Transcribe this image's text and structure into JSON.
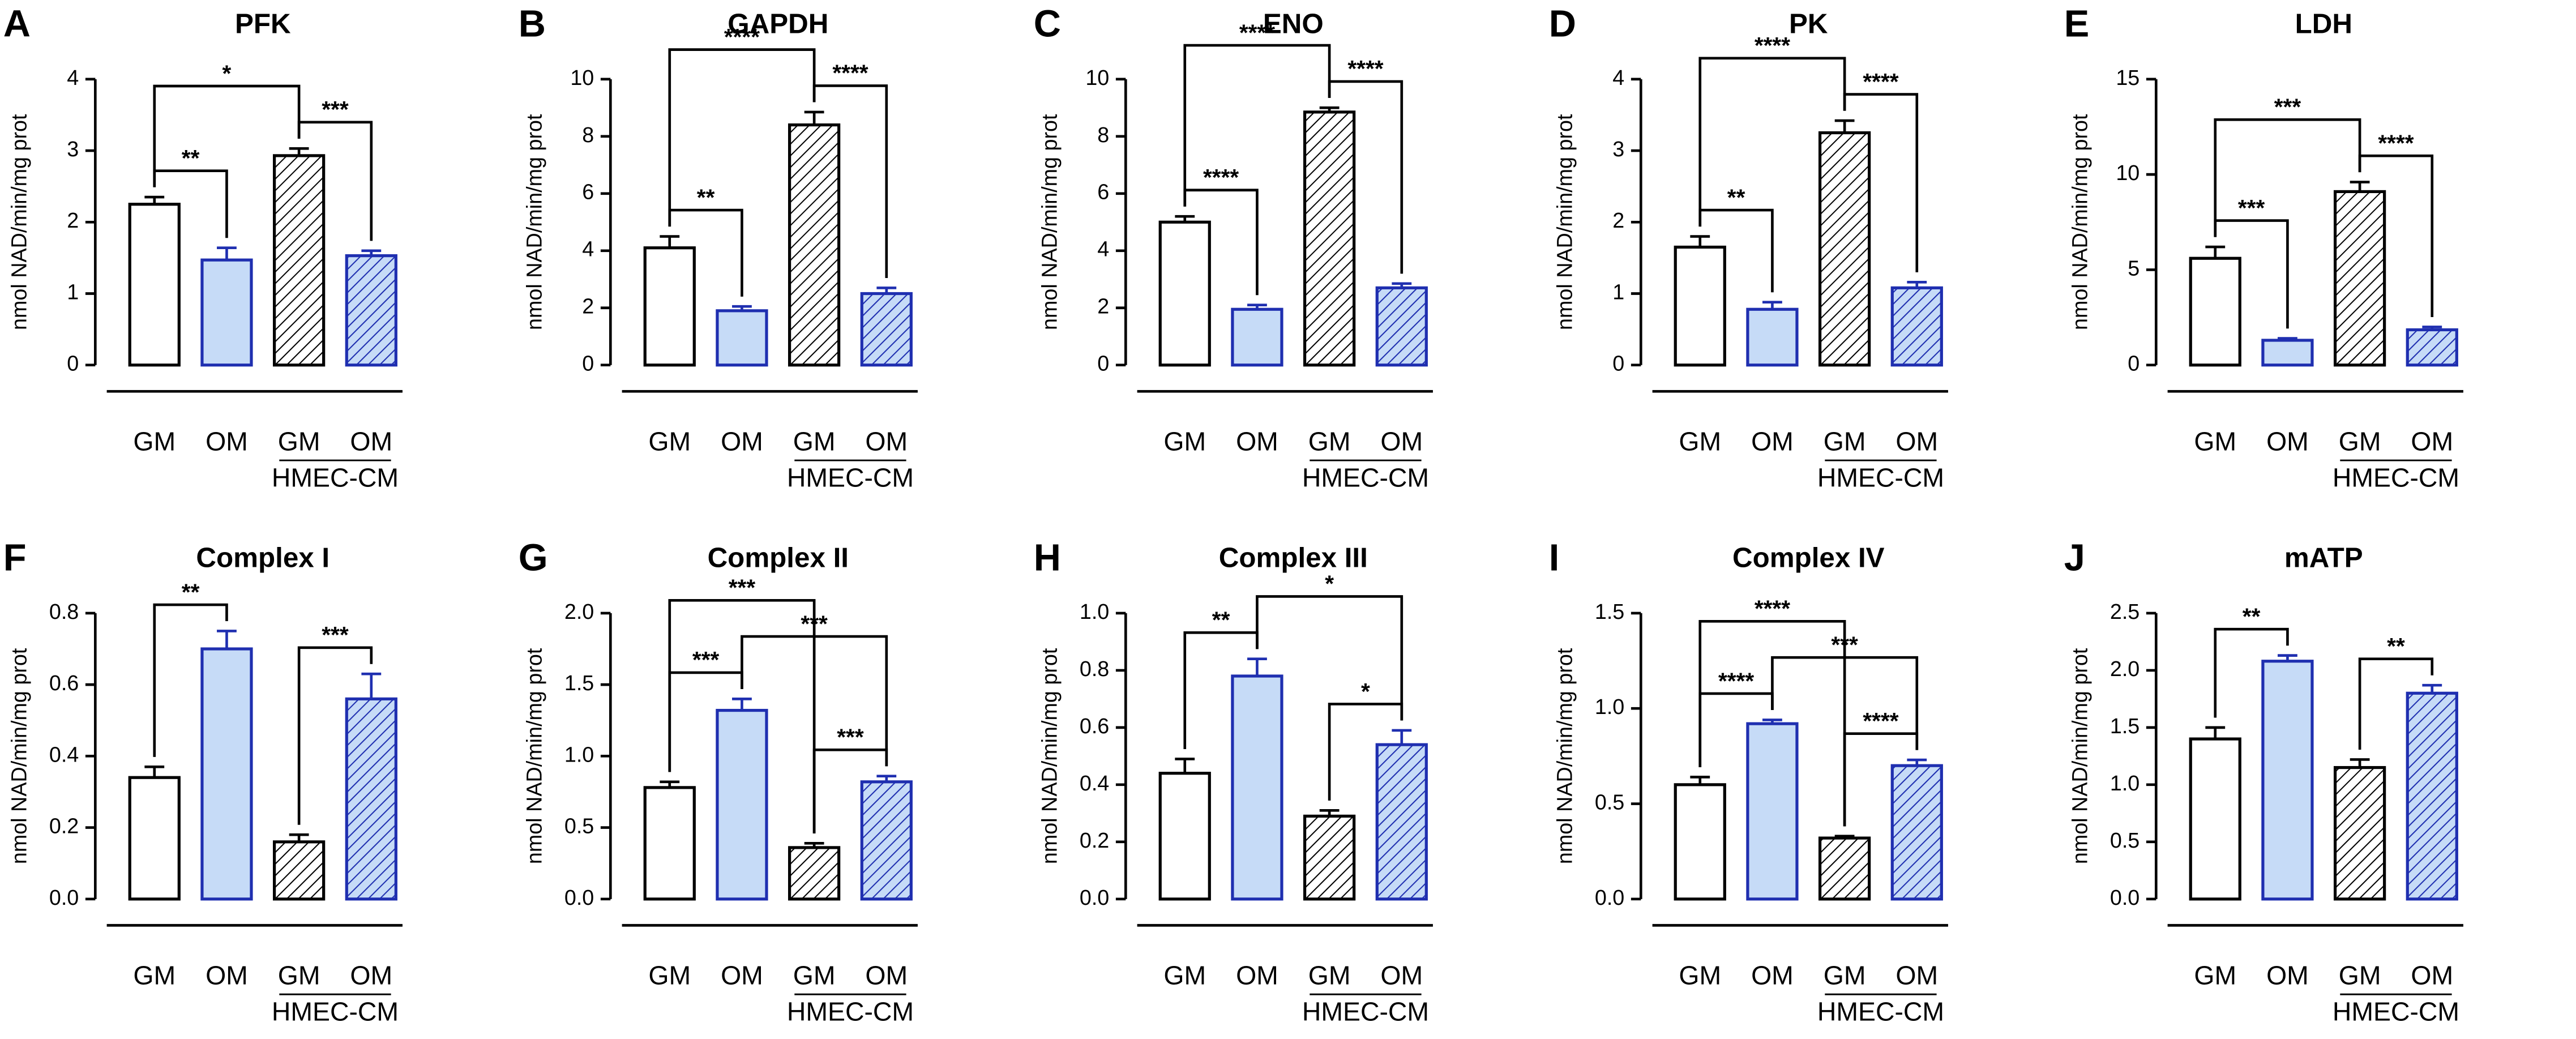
{
  "chart_data": [
    {
      "type": "bar",
      "panel": "A",
      "title": "PFK",
      "ylabel": "nmol NAD/min/mg prot",
      "categories": [
        "GM",
        "OM",
        "GM",
        "OM"
      ],
      "group_label": "HMEC-CM",
      "values": [
        2.25,
        1.47,
        2.93,
        1.53
      ],
      "errors": [
        0.1,
        0.17,
        0.1,
        0.07
      ],
      "ylim": [
        0,
        4
      ],
      "yticks": [
        0,
        1,
        2,
        3,
        4
      ],
      "colors": [
        "#ffffff",
        "#c6dbf7",
        "#ffffff",
        "#c6dbf7"
      ],
      "edgecolors": [
        "#000000",
        "#1f2fb0",
        "#000000",
        "#1f2fb0"
      ],
      "hatch": [
        false,
        false,
        true,
        true
      ],
      "brackets": [
        {
          "from": 0,
          "to": 1,
          "label": "**"
        },
        {
          "from": 2,
          "to": 3,
          "label": "***"
        },
        {
          "from": 0,
          "to": 2,
          "label": "*"
        }
      ]
    },
    {
      "type": "bar",
      "panel": "B",
      "title": "GAPDH",
      "ylabel": "nmol NAD/min/mg prot",
      "categories": [
        "GM",
        "OM",
        "GM",
        "OM"
      ],
      "group_label": "HMEC-CM",
      "values": [
        4.1,
        1.9,
        8.4,
        2.5
      ],
      "errors": [
        0.4,
        0.15,
        0.45,
        0.2
      ],
      "ylim": [
        0,
        10
      ],
      "yticks": [
        0,
        2,
        4,
        6,
        8,
        10
      ],
      "colors": [
        "#ffffff",
        "#c6dbf7",
        "#ffffff",
        "#c6dbf7"
      ],
      "edgecolors": [
        "#000000",
        "#1f2fb0",
        "#000000",
        "#1f2fb0"
      ],
      "hatch": [
        false,
        false,
        true,
        true
      ],
      "brackets": [
        {
          "from": 0,
          "to": 1,
          "label": "**"
        },
        {
          "from": 2,
          "to": 3,
          "label": "****"
        },
        {
          "from": 0,
          "to": 2,
          "label": "****"
        }
      ]
    },
    {
      "type": "bar",
      "panel": "C",
      "title": "ENO",
      "ylabel": "nmol NAD/min/mg prot",
      "categories": [
        "GM",
        "OM",
        "GM",
        "OM"
      ],
      "group_label": "HMEC-CM",
      "values": [
        5.0,
        1.95,
        8.85,
        2.7
      ],
      "errors": [
        0.2,
        0.15,
        0.15,
        0.15
      ],
      "ylim": [
        0,
        10
      ],
      "yticks": [
        0,
        2,
        4,
        6,
        8,
        10
      ],
      "colors": [
        "#ffffff",
        "#c6dbf7",
        "#ffffff",
        "#c6dbf7"
      ],
      "edgecolors": [
        "#000000",
        "#1f2fb0",
        "#000000",
        "#1f2fb0"
      ],
      "hatch": [
        false,
        false,
        true,
        true
      ],
      "brackets": [
        {
          "from": 0,
          "to": 1,
          "label": "****"
        },
        {
          "from": 2,
          "to": 3,
          "label": "****"
        },
        {
          "from": 0,
          "to": 2,
          "label": "****"
        }
      ]
    },
    {
      "type": "bar",
      "panel": "D",
      "title": "PK",
      "ylabel": "nmol NAD/min/mg prot",
      "categories": [
        "GM",
        "OM",
        "GM",
        "OM"
      ],
      "group_label": "HMEC-CM",
      "values": [
        1.65,
        0.78,
        3.25,
        1.08
      ],
      "errors": [
        0.15,
        0.1,
        0.17,
        0.08
      ],
      "ylim": [
        0,
        4
      ],
      "yticks": [
        0,
        1,
        2,
        3,
        4
      ],
      "colors": [
        "#ffffff",
        "#c6dbf7",
        "#ffffff",
        "#c6dbf7"
      ],
      "edgecolors": [
        "#000000",
        "#1f2fb0",
        "#000000",
        "#1f2fb0"
      ],
      "hatch": [
        false,
        false,
        true,
        true
      ],
      "brackets": [
        {
          "from": 0,
          "to": 1,
          "label": "**"
        },
        {
          "from": 2,
          "to": 3,
          "label": "****"
        },
        {
          "from": 0,
          "to": 2,
          "label": "****"
        }
      ]
    },
    {
      "type": "bar",
      "panel": "E",
      "title": "LDH",
      "ylabel": "nmol NAD/min/mg prot",
      "categories": [
        "GM",
        "OM",
        "GM",
        "OM"
      ],
      "group_label": "HMEC-CM",
      "values": [
        5.6,
        1.3,
        9.1,
        1.85
      ],
      "errors": [
        0.6,
        0.1,
        0.5,
        0.15
      ],
      "ylim": [
        0,
        15
      ],
      "yticks": [
        0,
        5,
        10,
        15
      ],
      "colors": [
        "#ffffff",
        "#c6dbf7",
        "#ffffff",
        "#c6dbf7"
      ],
      "edgecolors": [
        "#000000",
        "#1f2fb0",
        "#000000",
        "#1f2fb0"
      ],
      "hatch": [
        false,
        false,
        true,
        true
      ],
      "brackets": [
        {
          "from": 0,
          "to": 1,
          "label": "***"
        },
        {
          "from": 2,
          "to": 3,
          "label": "****"
        },
        {
          "from": 0,
          "to": 2,
          "label": "***"
        }
      ]
    },
    {
      "type": "bar",
      "panel": "F",
      "title": "Complex I",
      "ylabel": "nmol NAD/min/mg prot",
      "categories": [
        "GM",
        "OM",
        "GM",
        "OM"
      ],
      "group_label": "HMEC-CM",
      "values": [
        0.34,
        0.7,
        0.16,
        0.56
      ],
      "errors": [
        0.03,
        0.05,
        0.02,
        0.07
      ],
      "ylim": [
        0,
        0.8
      ],
      "yticks": [
        {
          "value": 0,
          "label": "0.0"
        },
        0.2,
        0.4,
        0.6,
        0.8
      ],
      "colors": [
        "#ffffff",
        "#c6dbf7",
        "#ffffff",
        "#c6dbf7"
      ],
      "edgecolors": [
        "#000000",
        "#1f2fb0",
        "#000000",
        "#1f2fb0"
      ],
      "hatch": [
        false,
        false,
        true,
        true
      ],
      "brackets": [
        {
          "from": 0,
          "to": 1,
          "label": "**"
        },
        {
          "from": 2,
          "to": 3,
          "label": "***"
        }
      ]
    },
    {
      "type": "bar",
      "panel": "G",
      "title": "Complex II",
      "ylabel": "nmol NAD/min/mg prot",
      "categories": [
        "GM",
        "OM",
        "GM",
        "OM"
      ],
      "group_label": "HMEC-CM",
      "values": [
        0.78,
        1.32,
        0.36,
        0.82
      ],
      "errors": [
        0.04,
        0.08,
        0.03,
        0.04
      ],
      "ylim": [
        0,
        2
      ],
      "yticks": [
        {
          "value": 0,
          "label": "0.0"
        },
        0.5,
        {
          "value": 1,
          "label": "1.0"
        },
        1.5,
        {
          "value": 2,
          "label": "2.0"
        }
      ],
      "colors": [
        "#ffffff",
        "#c6dbf7",
        "#ffffff",
        "#c6dbf7"
      ],
      "edgecolors": [
        "#000000",
        "#1f2fb0",
        "#000000",
        "#1f2fb0"
      ],
      "hatch": [
        false,
        false,
        true,
        true
      ],
      "brackets": [
        {
          "from": 0,
          "to": 1,
          "label": "***"
        },
        {
          "from": 2,
          "to": 3,
          "label": "***"
        },
        {
          "from": 1,
          "to": 3,
          "label": "***"
        },
        {
          "from": 0,
          "to": 2,
          "label": "***"
        }
      ]
    },
    {
      "type": "bar",
      "panel": "H",
      "title": "Complex III",
      "ylabel": "nmol NAD/min/mg prot",
      "categories": [
        "GM",
        "OM",
        "GM",
        "OM"
      ],
      "group_label": "HMEC-CM",
      "values": [
        0.44,
        0.78,
        0.29,
        0.54
      ],
      "errors": [
        0.05,
        0.06,
        0.02,
        0.05
      ],
      "ylim": [
        0,
        1
      ],
      "yticks": [
        {
          "value": 0,
          "label": "0.0"
        },
        0.2,
        0.4,
        0.6,
        0.8,
        {
          "value": 1,
          "label": "1.0"
        }
      ],
      "colors": [
        "#ffffff",
        "#c6dbf7",
        "#ffffff",
        "#c6dbf7"
      ],
      "edgecolors": [
        "#000000",
        "#1f2fb0",
        "#000000",
        "#1f2fb0"
      ],
      "hatch": [
        false,
        false,
        true,
        true
      ],
      "brackets": [
        {
          "from": 0,
          "to": 1,
          "label": "**"
        },
        {
          "from": 2,
          "to": 3,
          "label": "*"
        },
        {
          "from": 1,
          "to": 3,
          "label": "*"
        }
      ]
    },
    {
      "type": "bar",
      "panel": "I",
      "title": "Complex IV",
      "ylabel": "nmol NAD/min/mg prot",
      "categories": [
        "GM",
        "OM",
        "GM",
        "OM"
      ],
      "group_label": "HMEC-CM",
      "values": [
        0.6,
        0.92,
        0.32,
        0.7
      ],
      "errors": [
        0.04,
        0.02,
        0.01,
        0.03
      ],
      "ylim": [
        0,
        1.5
      ],
      "yticks": [
        {
          "value": 0,
          "label": "0.0"
        },
        0.5,
        {
          "value": 1,
          "label": "1.0"
        },
        1.5
      ],
      "colors": [
        "#ffffff",
        "#c6dbf7",
        "#ffffff",
        "#c6dbf7"
      ],
      "edgecolors": [
        "#000000",
        "#1f2fb0",
        "#000000",
        "#1f2fb0"
      ],
      "hatch": [
        false,
        false,
        true,
        true
      ],
      "brackets": [
        {
          "from": 0,
          "to": 1,
          "label": "****"
        },
        {
          "from": 2,
          "to": 3,
          "label": "****"
        },
        {
          "from": 1,
          "to": 3,
          "label": "***"
        },
        {
          "from": 0,
          "to": 2,
          "label": "****"
        }
      ]
    },
    {
      "type": "bar",
      "panel": "J",
      "title": "mATP",
      "ylabel": "nmol NAD/min/mg prot",
      "categories": [
        "GM",
        "OM",
        "GM",
        "OM"
      ],
      "group_label": "HMEC-CM",
      "values": [
        1.4,
        2.08,
        1.15,
        1.8
      ],
      "errors": [
        0.1,
        0.05,
        0.07,
        0.07
      ],
      "ylim": [
        0,
        2.5
      ],
      "yticks": [
        {
          "value": 0,
          "label": "0.0"
        },
        0.5,
        {
          "value": 1,
          "label": "1.0"
        },
        1.5,
        {
          "value": 2,
          "label": "2.0"
        },
        2.5
      ],
      "colors": [
        "#ffffff",
        "#c6dbf7",
        "#ffffff",
        "#c6dbf7"
      ],
      "edgecolors": [
        "#000000",
        "#1f2fb0",
        "#000000",
        "#1f2fb0"
      ],
      "hatch": [
        false,
        false,
        true,
        true
      ],
      "brackets": [
        {
          "from": 0,
          "to": 1,
          "label": "**"
        },
        {
          "from": 2,
          "to": 3,
          "label": "**"
        }
      ]
    }
  ]
}
